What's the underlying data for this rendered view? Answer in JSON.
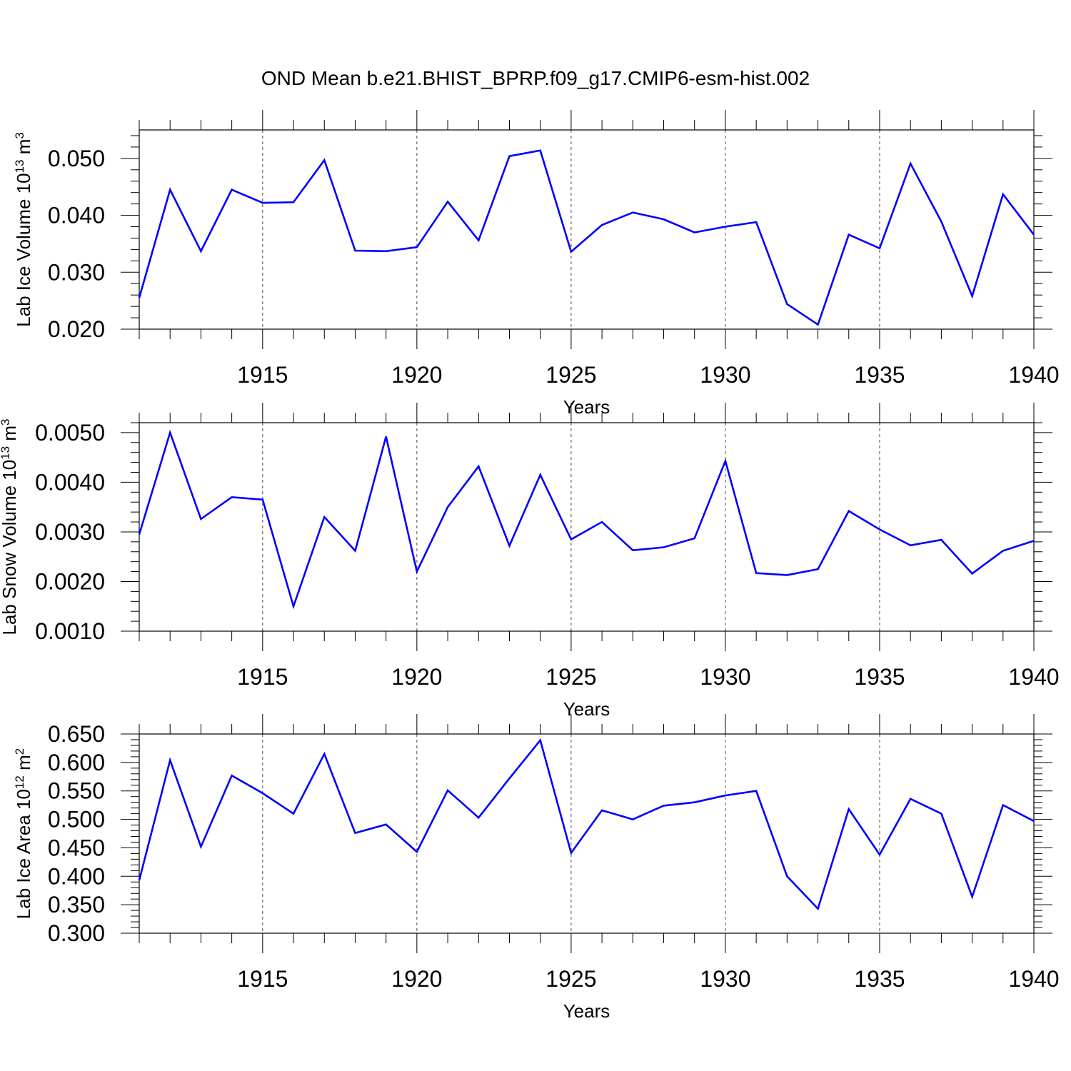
{
  "title": "OND Mean b.e21.BHIST_BPRP.f09_g17.CMIP6-esm-hist.002",
  "colors": {
    "line": "#0000ff",
    "axis": "#000000",
    "grid": "#000000",
    "background": "#ffffff"
  },
  "chart_data": [
    {
      "type": "line",
      "ylabel": "Lab Ice Volume",
      "ylabel_unit": {
        "base": "10",
        "exp": "13",
        "unit": "m",
        "unit_exp": "3"
      },
      "xlabel": "Years",
      "xlim": [
        1911,
        1940
      ],
      "ylim": [
        0.02,
        0.055
      ],
      "yticks": [
        0.02,
        0.03,
        0.04,
        0.05
      ],
      "ytick_labels": [
        "0.020",
        "0.030",
        "0.040",
        "0.050"
      ],
      "xticks": [
        1915,
        1920,
        1925,
        1930,
        1935,
        1940
      ],
      "xtick_labels": [
        "1915",
        "1920",
        "1925",
        "1930",
        "1935",
        "1940"
      ],
      "vertical_grid": "dashed at major x ticks",
      "series": [
        {
          "x": [
            1911,
            1912,
            1913,
            1914,
            1915,
            1916,
            1917,
            1918,
            1919,
            1920,
            1921,
            1922,
            1923,
            1924,
            1925,
            1926,
            1927,
            1928,
            1929,
            1930,
            1931,
            1932,
            1933,
            1934,
            1935,
            1936,
            1937,
            1938,
            1939,
            1940
          ],
          "values": [
            0.0255,
            0.0445,
            0.0337,
            0.0445,
            0.0422,
            0.0423,
            0.0497,
            0.0338,
            0.0337,
            0.0344,
            0.0424,
            0.0356,
            0.0504,
            0.0514,
            0.0336,
            0.0383,
            0.0405,
            0.0393,
            0.037,
            0.038,
            0.0388,
            0.0244,
            0.0208,
            0.0366,
            0.0342,
            0.0491,
            0.0389,
            0.0258,
            0.0437,
            0.0366
          ]
        }
      ]
    },
    {
      "type": "line",
      "ylabel": "Lab Snow Volume",
      "ylabel_unit": {
        "base": "10",
        "exp": "13",
        "unit": "m",
        "unit_exp": "3"
      },
      "xlabel": "Years",
      "xlim": [
        1911,
        1940
      ],
      "ylim": [
        0.001,
        0.0052
      ],
      "yticks": [
        0.001,
        0.002,
        0.003,
        0.004,
        0.005
      ],
      "ytick_labels": [
        "0.0010",
        "0.0020",
        "0.0030",
        "0.0040",
        "0.0050"
      ],
      "xticks": [
        1915,
        1920,
        1925,
        1930,
        1935,
        1940
      ],
      "xtick_labels": [
        "1915",
        "1920",
        "1925",
        "1930",
        "1935",
        "1940"
      ],
      "vertical_grid": "dashed at major x ticks",
      "series": [
        {
          "x": [
            1911,
            1912,
            1913,
            1914,
            1915,
            1916,
            1917,
            1918,
            1919,
            1920,
            1921,
            1922,
            1923,
            1924,
            1925,
            1926,
            1927,
            1928,
            1929,
            1930,
            1931,
            1932,
            1933,
            1934,
            1935,
            1936,
            1937,
            1938,
            1939,
            1940
          ],
          "values": [
            0.00295,
            0.005,
            0.00326,
            0.0037,
            0.00365,
            0.0015,
            0.0033,
            0.00262,
            0.00492,
            0.0022,
            0.0035,
            0.00432,
            0.00272,
            0.00415,
            0.00285,
            0.0032,
            0.00263,
            0.00269,
            0.00287,
            0.00443,
            0.00217,
            0.00213,
            0.00225,
            0.00342,
            0.00305,
            0.00273,
            0.00284,
            0.00216,
            0.00262,
            0.00282
          ]
        }
      ]
    },
    {
      "type": "line",
      "ylabel": "Lab Ice Area",
      "ylabel_unit": {
        "base": "10",
        "exp": "12",
        "unit": "m",
        "unit_exp": "2"
      },
      "xlabel": "Years",
      "xlim": [
        1911,
        1940
      ],
      "ylim": [
        0.3,
        0.65
      ],
      "yticks": [
        0.3,
        0.35,
        0.4,
        0.45,
        0.5,
        0.55,
        0.6,
        0.65
      ],
      "ytick_labels": [
        "0.300",
        "0.350",
        "0.400",
        "0.450",
        "0.500",
        "0.550",
        "0.600",
        "0.650"
      ],
      "xticks": [
        1915,
        1920,
        1925,
        1930,
        1935,
        1940
      ],
      "xtick_labels": [
        "1915",
        "1920",
        "1925",
        "1930",
        "1935",
        "1940"
      ],
      "vertical_grid": "dashed at major x ticks",
      "series": [
        {
          "x": [
            1911,
            1912,
            1913,
            1914,
            1915,
            1916,
            1917,
            1918,
            1919,
            1920,
            1921,
            1922,
            1923,
            1924,
            1925,
            1926,
            1927,
            1928,
            1929,
            1930,
            1931,
            1932,
            1933,
            1934,
            1935,
            1936,
            1937,
            1938,
            1939,
            1940
          ],
          "values": [
            0.393,
            0.604,
            0.452,
            0.577,
            0.546,
            0.51,
            0.615,
            0.476,
            0.491,
            0.443,
            0.551,
            0.503,
            0.572,
            0.639,
            0.441,
            0.516,
            0.5,
            0.524,
            0.53,
            0.542,
            0.55,
            0.4,
            0.343,
            0.518,
            0.438,
            0.536,
            0.51,
            0.364,
            0.525,
            0.497
          ]
        }
      ]
    }
  ]
}
